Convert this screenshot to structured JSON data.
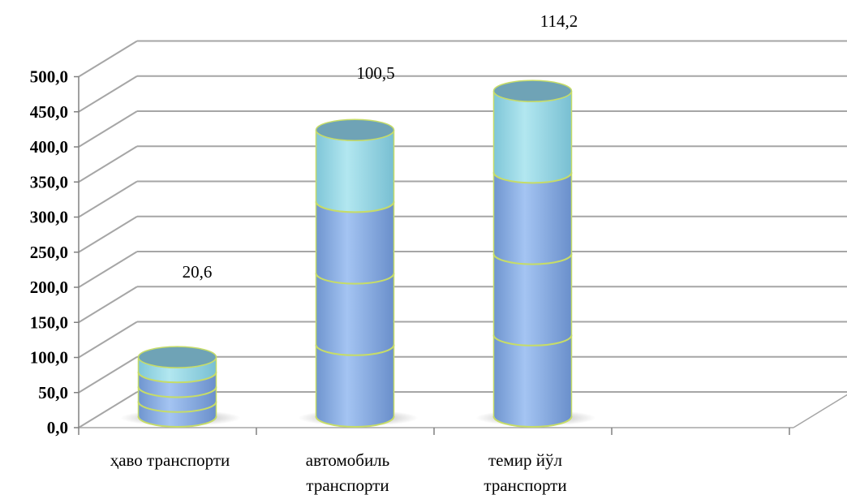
{
  "chart_data": {
    "type": "bar",
    "style": "3d-cylinder-stacked",
    "y_tick_labels": [
      "0,0",
      "50,0",
      "100,0",
      "150,0",
      "200,0",
      "250,0",
      "300,0",
      "350,0",
      "400,0",
      "450,0",
      "500,0"
    ],
    "ylim": [
      0,
      500
    ],
    "grid": true,
    "categories": [
      [
        "ҳаво транспорти"
      ],
      [
        "автомобиль",
        "транспорти"
      ],
      [
        "темир йўл",
        "транспорти"
      ]
    ],
    "segments": [
      [
        20.8,
        20.8,
        20.8,
        20.6
      ],
      [
        100.5,
        100.5,
        100.5,
        100.5
      ],
      [
        114.2,
        114.2,
        114.2,
        114.2
      ]
    ],
    "data_labels": [
      "20,6",
      "100,5",
      "114,2"
    ],
    "colors": {
      "body": "#8db3e8",
      "top_segment": "#9bdbe8",
      "outline": "#c6dc68",
      "cap": "#6fa3b6",
      "grid": "#a6a6a6"
    }
  }
}
